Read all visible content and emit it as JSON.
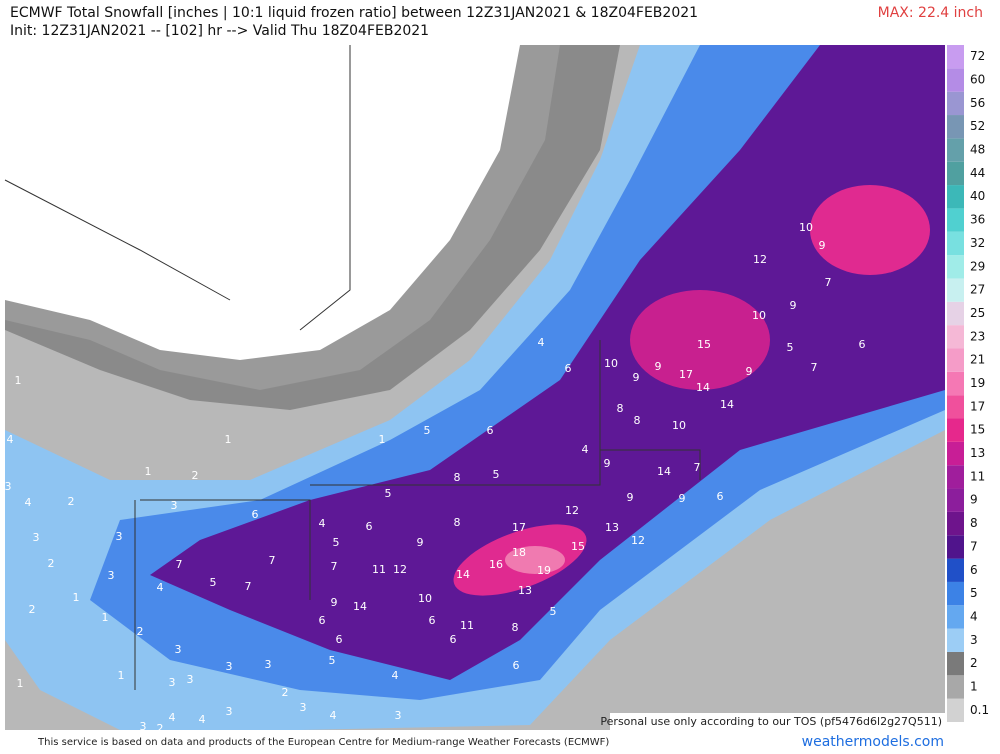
{
  "header": {
    "title": "ECMWF Total Snowfall [inches | 10:1 liquid frozen ratio] between 12Z31JAN2021 & 18Z04FEB2021",
    "subtitle": "Init: 12Z31JAN2021 -- [102] hr --> Valid Thu 18Z04FEB2021",
    "max_label": "MAX: 22.4 inch"
  },
  "map_labels": [
    10,
    9,
    12,
    7,
    10,
    9,
    5,
    6,
    7,
    4,
    6,
    10,
    9,
    9,
    15,
    17,
    14,
    9,
    14,
    8,
    8,
    10,
    5,
    6,
    4,
    9,
    14,
    7,
    8,
    5,
    9,
    9,
    6,
    5,
    12,
    13,
    12,
    15,
    4,
    6,
    8,
    17,
    5,
    9,
    18,
    7,
    11,
    12,
    14,
    16,
    19,
    13,
    6,
    3,
    7,
    5,
    7,
    7,
    4,
    9,
    14,
    10,
    5,
    6,
    6,
    8,
    11,
    6,
    6,
    6,
    5,
    3,
    3,
    2,
    1,
    1,
    2,
    1,
    1,
    1,
    2,
    1,
    1,
    2,
    4,
    3,
    4,
    3,
    1,
    2,
    3,
    3,
    3,
    3,
    3,
    4,
    3,
    2,
    4,
    3,
    4,
    3,
    2,
    4,
    3
  ],
  "colorbar": {
    "levels": [
      0.1,
      1,
      2,
      3,
      4,
      5,
      6,
      7,
      8,
      9,
      11,
      13,
      15,
      17,
      19,
      21,
      23,
      25,
      27,
      29,
      32,
      36,
      40,
      44,
      48,
      52,
      56,
      60,
      72
    ],
    "colors": [
      "#d2d2d2",
      "#a8a8a8",
      "#7a7a7a",
      "#9ccdf5",
      "#64a8f0",
      "#3c82e6",
      "#2050c8",
      "#50148c",
      "#6e148c",
      "#8c1e9c",
      "#a01e9c",
      "#c81e96",
      "#e6288c",
      "#f0509c",
      "#f578b4",
      "#f59cc8",
      "#f5b8d6",
      "#e6d2e6",
      "#c8f0f0",
      "#a0ece8",
      "#78e0e0",
      "#50d0d0",
      "#3cb8b8",
      "#50a0a0",
      "#64a0aa",
      "#7896b4",
      "#9a96d2",
      "#b48ce6",
      "#c89cf0"
    ]
  },
  "footer": {
    "tos": "Personal use only according to our TOS (pf5476d6l2g27Q511)",
    "source": "This service is based on data and products of the European Centre for Medium-range Weather Forecasts (ECMWF)",
    "site": "weathermodels.com"
  }
}
